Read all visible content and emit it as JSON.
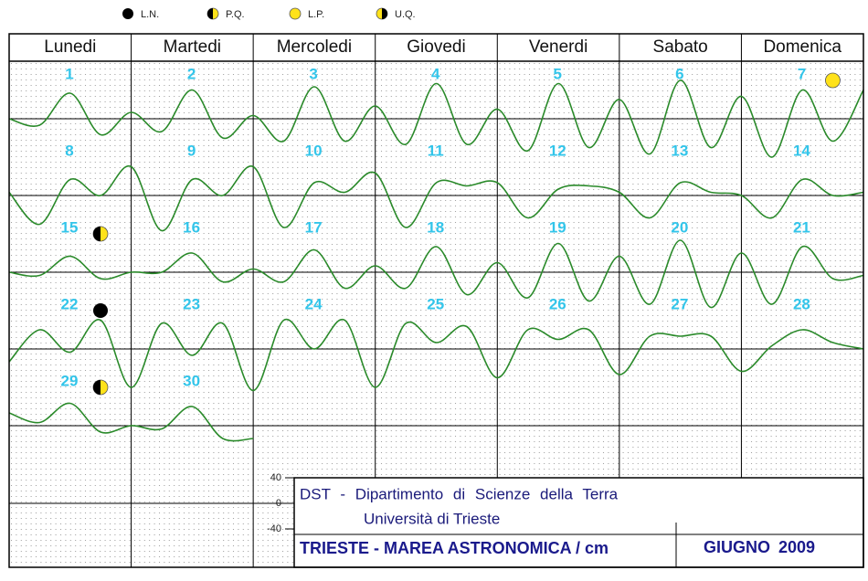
{
  "legend": [
    {
      "label": "L.N."
    },
    {
      "label": "P.Q."
    },
    {
      "label": "L.P."
    },
    {
      "label": "U.Q."
    }
  ],
  "weekdays": [
    "Lunedi",
    "Martedi",
    "Mercoledi",
    "Giovedi",
    "Venerdi",
    "Sabato",
    "Domenica"
  ],
  "ylim": [
    -60,
    60
  ],
  "yticks": [
    40,
    0,
    -40
  ],
  "weeks": [
    {
      "days": [
        {
          "number": "1"
        },
        {
          "number": "2"
        },
        {
          "number": "3"
        },
        {
          "number": "4"
        },
        {
          "number": "5"
        },
        {
          "number": "6"
        },
        {
          "number": "7",
          "moon": "L.P."
        }
      ],
      "values": [
        0,
        -10,
        40,
        -25,
        10,
        -20,
        45,
        -30,
        5,
        -35,
        50,
        -35,
        20,
        -40,
        55,
        -40,
        15,
        -50,
        55,
        -45,
        30,
        -55,
        60,
        -45,
        35,
        -60,
        45,
        -35,
        45
      ]
    },
    {
      "days": [
        {
          "number": "8"
        },
        {
          "number": "9"
        },
        {
          "number": "10"
        },
        {
          "number": "11"
        },
        {
          "number": "12"
        },
        {
          "number": "13"
        },
        {
          "number": "14"
        }
      ],
      "values": [
        5,
        -45,
        25,
        0,
        45,
        -55,
        25,
        0,
        45,
        -50,
        20,
        5,
        35,
        -50,
        20,
        15,
        20,
        -35,
        10,
        15,
        5,
        -35,
        20,
        5,
        0,
        -35,
        25,
        0,
        5
      ]
    },
    {
      "days": [
        {
          "number": "15",
          "moon": "P.Q."
        },
        {
          "number": "16"
        },
        {
          "number": "17"
        },
        {
          "number": "18"
        },
        {
          "number": "19"
        },
        {
          "number": "20"
        },
        {
          "number": "21"
        }
      ],
      "values": [
        0,
        -5,
        25,
        -10,
        0,
        0,
        30,
        -15,
        5,
        -15,
        35,
        -25,
        10,
        -25,
        40,
        -35,
        15,
        -40,
        45,
        -45,
        25,
        -50,
        50,
        -55,
        30,
        -50,
        40,
        -10,
        -5
      ]
    },
    {
      "days": [
        {
          "number": "22",
          "moon": "L.N."
        },
        {
          "number": "23"
        },
        {
          "number": "24"
        },
        {
          "number": "25"
        },
        {
          "number": "26"
        },
        {
          "number": "27"
        },
        {
          "number": "28"
        }
      ],
      "values": [
        -20,
        30,
        -5,
        45,
        -60,
        40,
        -10,
        40,
        -65,
        45,
        0,
        45,
        -60,
        40,
        10,
        35,
        -45,
        30,
        15,
        30,
        -40,
        20,
        20,
        20,
        -35,
        5,
        30,
        10,
        0
      ]
    },
    {
      "days": [
        {
          "number": "29",
          "moon": "P.Q."
        },
        {
          "number": "30"
        }
      ],
      "values": [
        20,
        5,
        35,
        -10,
        0,
        -5,
        30,
        -20,
        -20
      ]
    }
  ],
  "footer": {
    "institute": "DST - Dipartimento di Scienze della Terra",
    "university": "Università di Trieste",
    "title": "TRIESTE - MAREA ASTRONOMICA / cm",
    "month": "GIUGNO 2009"
  }
}
